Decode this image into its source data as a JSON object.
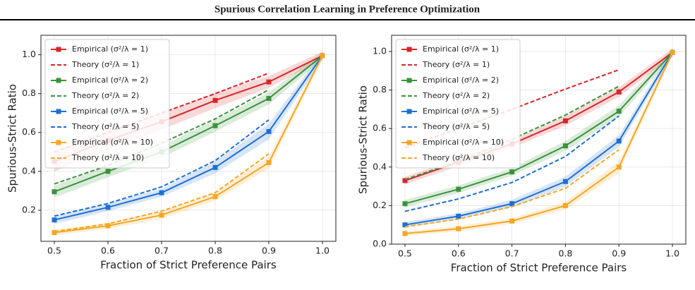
{
  "title": "Spurious Correlation Learning in Preference Optimization",
  "chart_data": [
    {
      "type": "line",
      "xlabel": "Fraction of Strict Preference Pairs",
      "ylabel": "Spurious-Strict Ratio",
      "x": [
        0.5,
        0.6,
        0.7,
        0.8,
        0.9,
        1.0
      ],
      "xlim": [
        0.475,
        1.025
      ],
      "ylim": [
        0.04,
        1.1
      ],
      "xticks": [
        0.5,
        0.6,
        0.7,
        0.8,
        0.9,
        {
          "value": 1,
          "label": "1.0"
        }
      ],
      "yticks": [
        0.2,
        0.4,
        0.6,
        0.8,
        {
          "value": 1,
          "label": "1.0"
        }
      ],
      "grid": true,
      "legend": "upper left",
      "series": [
        {
          "name": "Empirical (σ²/λ = 1)",
          "color": "#d62728",
          "style": "solid",
          "marker": "square",
          "values": [
            0.45,
            0.56,
            0.655,
            0.765,
            0.86,
            0.995
          ],
          "errors": [
            0.05,
            0.05,
            0.04,
            0.04,
            0.03,
            0.02
          ]
        },
        {
          "name": "Theory (σ²/λ = 1)",
          "color": "#d62728",
          "style": "dashed",
          "values": [
            0.5,
            0.6,
            0.7,
            0.8,
            0.905,
            null
          ]
        },
        {
          "name": "Empirical (σ²/λ = 2)",
          "color": "#3a923a",
          "style": "solid",
          "marker": "square",
          "values": [
            0.295,
            0.4,
            0.5,
            0.635,
            0.775,
            0.995
          ],
          "errors": [
            0.03,
            0.03,
            0.03,
            0.03,
            0.03,
            0.02
          ]
        },
        {
          "name": "Theory (σ²/λ = 2)",
          "color": "#3a923a",
          "style": "dashed",
          "values": [
            0.335,
            0.43,
            0.545,
            0.67,
            0.82,
            null
          ]
        },
        {
          "name": "Empirical (σ²/λ = 5)",
          "color": "#1f6fd1",
          "style": "solid",
          "marker": "square",
          "values": [
            0.15,
            0.215,
            0.29,
            0.42,
            0.605,
            0.995
          ],
          "errors": [
            0.02,
            0.02,
            0.02,
            0.03,
            0.04,
            0.02
          ]
        },
        {
          "name": "Theory (σ²/λ = 5)",
          "color": "#1f6fd1",
          "style": "dashed",
          "values": [
            0.17,
            0.235,
            0.32,
            0.455,
            0.665,
            null
          ]
        },
        {
          "name": "Empirical (σ²/λ = 10)",
          "color": "#f5a623",
          "style": "solid",
          "marker": "square",
          "values": [
            0.085,
            0.12,
            0.175,
            0.27,
            0.445,
            0.995
          ],
          "errors": [
            0.015,
            0.015,
            0.02,
            0.02,
            0.03,
            0.02
          ]
        },
        {
          "name": "Theory (σ²/λ = 10)",
          "color": "#f5a623",
          "style": "dashed",
          "values": [
            0.09,
            0.13,
            0.195,
            0.29,
            0.49,
            null
          ]
        }
      ]
    },
    {
      "type": "line",
      "xlabel": "Fraction of Strict Preference Pairs",
      "ylabel": "Spurious-Strict Ratio",
      "x": [
        0.5,
        0.6,
        0.7,
        0.8,
        0.9,
        1.0
      ],
      "xlim": [
        0.475,
        1.025
      ],
      "ylim": [
        0,
        1.084
      ],
      "xticks": [
        0.5,
        0.6,
        0.7,
        0.8,
        0.9,
        {
          "value": 1,
          "label": "1.0"
        }
      ],
      "yticks": [
        {
          "value": 0,
          "label": "0.0"
        },
        0.2,
        0.4,
        0.6,
        0.8,
        {
          "value": 1,
          "label": "1.0"
        }
      ],
      "grid": true,
      "legend": "upper left",
      "series": [
        {
          "name": "Empirical (σ²/λ = 1)",
          "color": "#d62728",
          "style": "solid",
          "marker": "square",
          "values": [
            0.33,
            0.425,
            0.52,
            0.64,
            0.79,
            0.995
          ],
          "errors": [
            0.02,
            0.02,
            0.02,
            0.025,
            0.025,
            0.02
          ]
        },
        {
          "name": "Theory (σ²/λ = 1)",
          "color": "#d62728",
          "style": "dashed",
          "values": [
            0.5,
            0.6,
            0.7,
            0.805,
            0.905,
            null
          ]
        },
        {
          "name": "Empirical (σ²/λ = 2)",
          "color": "#3a923a",
          "style": "solid",
          "marker": "square",
          "values": [
            0.21,
            0.285,
            0.375,
            0.51,
            0.69,
            0.995
          ],
          "errors": [
            0.02,
            0.02,
            0.02,
            0.025,
            0.03,
            0.02
          ]
        },
        {
          "name": "Theory (σ²/λ = 2)",
          "color": "#3a923a",
          "style": "dashed",
          "values": [
            0.335,
            0.43,
            0.545,
            0.67,
            0.82,
            null
          ]
        },
        {
          "name": "Empirical (σ²/λ = 5)",
          "color": "#1f6fd1",
          "style": "solid",
          "marker": "square",
          "values": [
            0.1,
            0.145,
            0.21,
            0.325,
            0.535,
            0.995
          ],
          "errors": [
            0.015,
            0.015,
            0.02,
            0.025,
            0.03,
            0.02
          ]
        },
        {
          "name": "Theory (σ²/λ = 5)",
          "color": "#1f6fd1",
          "style": "dashed",
          "values": [
            0.17,
            0.235,
            0.32,
            0.455,
            0.665,
            null
          ]
        },
        {
          "name": "Empirical (σ²/λ = 10)",
          "color": "#f5a623",
          "style": "solid",
          "marker": "square",
          "values": [
            0.055,
            0.08,
            0.12,
            0.2,
            0.4,
            0.995
          ],
          "errors": [
            0.01,
            0.015,
            0.015,
            0.02,
            0.03,
            0.02
          ]
        },
        {
          "name": "Theory (σ²/λ = 10)",
          "color": "#f5a623",
          "style": "dashed",
          "values": [
            0.09,
            0.13,
            0.195,
            0.29,
            0.49,
            null
          ]
        }
      ]
    }
  ]
}
